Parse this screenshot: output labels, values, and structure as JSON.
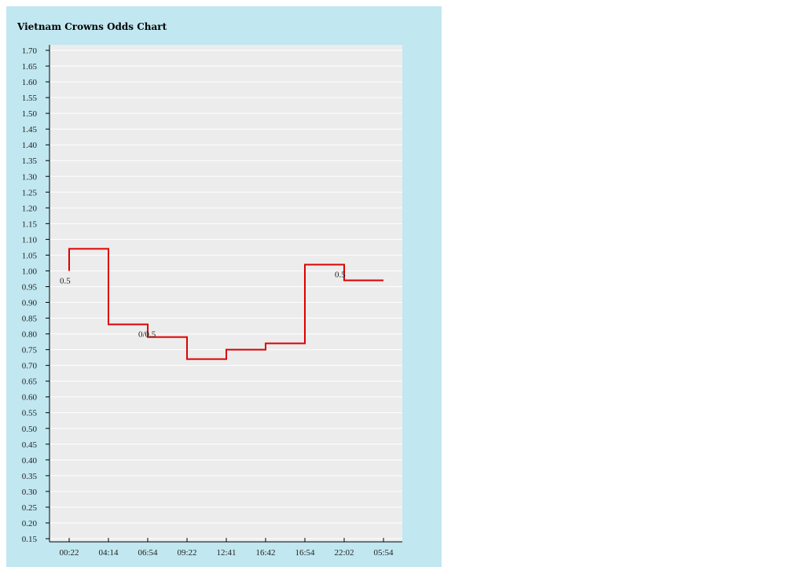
{
  "chart_data": {
    "type": "line",
    "title": "Vietnam Crowns Odds Chart",
    "xlabel": "",
    "ylabel": "",
    "x_tick_labels": [
      "00:22",
      "04:14",
      "06:54",
      "09:22",
      "12:41",
      "16:42",
      "16:54",
      "22:02",
      "05:54"
    ],
    "y_tick_labels": [
      "1.70",
      "1.65",
      "1.60",
      "1.55",
      "1.50",
      "1.45",
      "1.40",
      "1.35",
      "1.30",
      "1.25",
      "1.20",
      "1.15",
      "1.10",
      "1.05",
      "1.00",
      "0.95",
      "0.90",
      "0.85",
      "0.80",
      "0.75",
      "0.70",
      "0.65",
      "0.60",
      "0.55",
      "0.50",
      "0.45",
      "0.40",
      "0.35",
      "0.30",
      "0.25",
      "0.20",
      "0.15"
    ],
    "ylim": [
      0.15,
      1.7
    ],
    "step": true,
    "grid": true,
    "legend": "none",
    "series": [
      {
        "color": "#dd0000",
        "points": [
          {
            "x": "00:22",
            "y": 1.0
          },
          {
            "x": "00:22",
            "y": 1.07
          },
          {
            "x": "04:14",
            "y": 1.07
          },
          {
            "x": "04:14",
            "y": 0.83
          },
          {
            "x": "06:54",
            "y": 0.83
          },
          {
            "x": "06:54",
            "y": 0.79
          },
          {
            "x": "09:22",
            "y": 0.79
          },
          {
            "x": "09:22",
            "y": 0.72
          },
          {
            "x": "12:41",
            "y": 0.72
          },
          {
            "x": "12:41",
            "y": 0.75
          },
          {
            "x": "16:42",
            "y": 0.75
          },
          {
            "x": "16:42",
            "y": 0.77
          },
          {
            "x": "16:54",
            "y": 0.77
          },
          {
            "x": "16:54",
            "y": 1.02
          },
          {
            "x": "22:02",
            "y": 1.02
          },
          {
            "x": "22:02",
            "y": 0.97
          },
          {
            "x": "05:54",
            "y": 0.97
          }
        ]
      }
    ],
    "annotations": [
      {
        "text": "0.5",
        "x": "00:22",
        "y": 0.97
      },
      {
        "text": "0/0.5",
        "x": "06:54",
        "y": 0.8
      },
      {
        "text": "0.5",
        "x": "22:02",
        "y": 0.99
      }
    ],
    "colors": {
      "panel_background": "#c1e7f0",
      "plot_background": "#ececec",
      "gridline": "#ffffff",
      "axis": "#000000",
      "line": "#dd0000"
    }
  }
}
